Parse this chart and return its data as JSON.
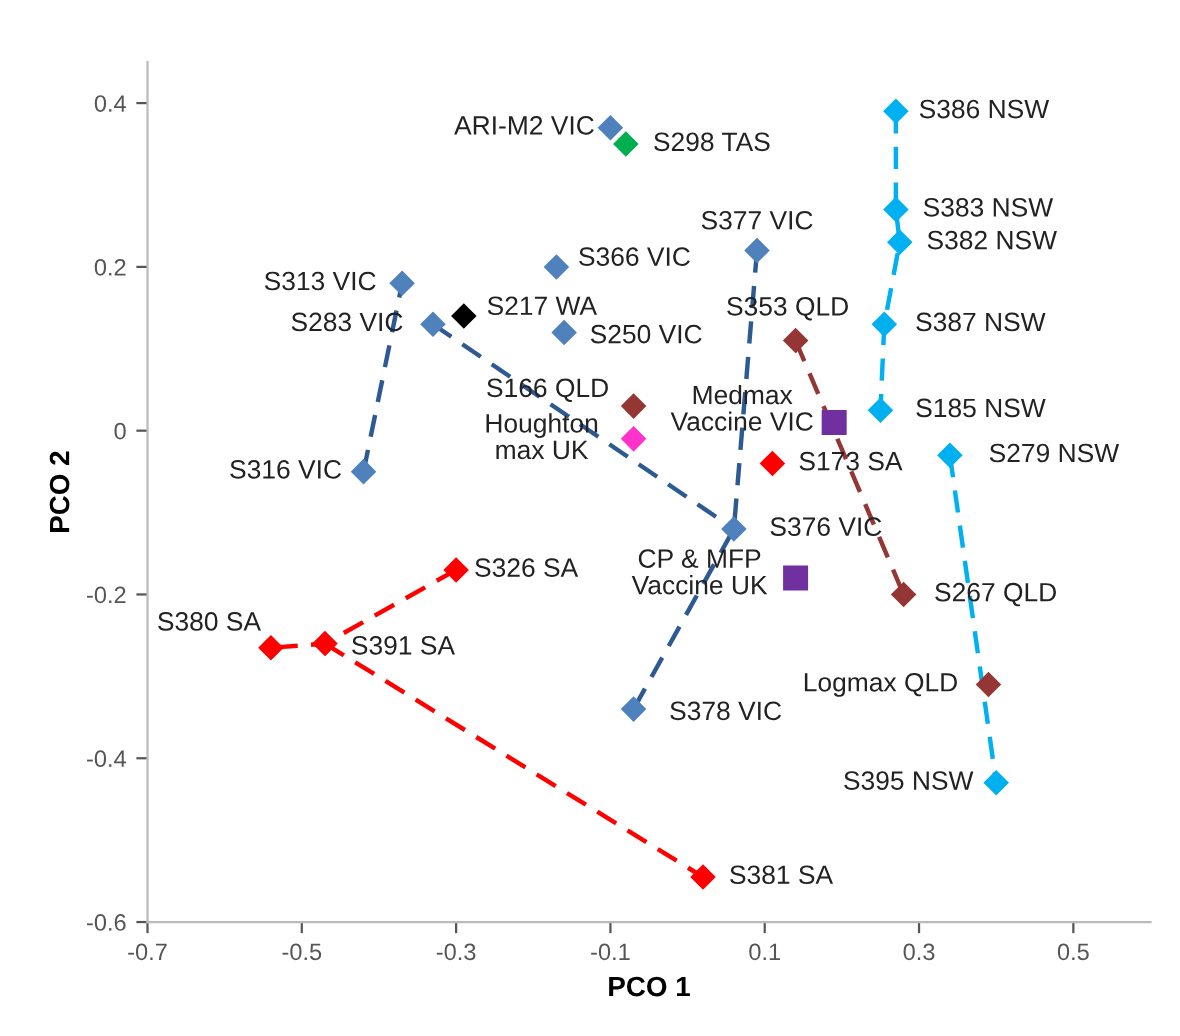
{
  "chart_data": {
    "type": "scatter",
    "xlabel": "PCO 1",
    "ylabel": "PCO 2",
    "xlim": [
      -0.7,
      0.6
    ],
    "xticks": [
      -0.7,
      -0.5,
      -0.3,
      -0.1,
      0.1,
      0.3,
      0.5
    ],
    "ylim": [
      -0.6,
      0.45
    ],
    "yticks": [
      -0.6,
      -0.4,
      -0.2,
      0,
      0.2,
      0.4
    ],
    "grid": false,
    "legend": false,
    "marker": "diamond",
    "series": [
      {
        "type": "line",
        "line_style": "dashed",
        "marker": "none",
        "color": "#2e5a94",
        "x": [
          -0.42,
          -0.37
        ],
        "values": [
          -0.05,
          0.18
        ]
      },
      {
        "type": "line",
        "line_style": "dashed",
        "marker": "none",
        "color": "#2e5a94",
        "x": [
          -0.33,
          0.06
        ],
        "values": [
          0.13,
          -0.12
        ]
      },
      {
        "type": "line",
        "line_style": "dashed",
        "marker": "none",
        "color": "#2e5a94",
        "x": [
          0.09,
          0.06,
          -0.07
        ],
        "values": [
          0.22,
          -0.12,
          -0.34
        ]
      },
      {
        "type": "line",
        "line_style": "dashed",
        "marker": "none",
        "color": "#ff0000",
        "x": [
          -0.3,
          -0.47,
          -0.54
        ],
        "values": [
          -0.17,
          -0.26,
          -0.265
        ]
      },
      {
        "type": "line",
        "line_style": "dashed",
        "marker": "none",
        "color": "#ff0000",
        "x": [
          -0.47,
          0.02
        ],
        "values": [
          -0.26,
          -0.545
        ]
      },
      {
        "type": "line",
        "line_style": "dashed",
        "marker": "none",
        "color": "#00b0f0",
        "x": [
          0.27,
          0.27,
          0.275,
          0.255,
          0.25
        ],
        "values": [
          0.39,
          0.27,
          0.23,
          0.13,
          0.025
        ]
      },
      {
        "type": "line",
        "line_style": "dashed",
        "marker": "none",
        "color": "#00b0f0",
        "x": [
          0.34,
          0.4
        ],
        "values": [
          -0.03,
          -0.43
        ]
      },
      {
        "type": "line",
        "line_style": "dashed",
        "marker": "none",
        "color": "#943634",
        "x": [
          0.14,
          0.28
        ],
        "values": [
          0.11,
          -0.2
        ]
      },
      {
        "color": "#4f81bd",
        "x": [
          -0.1,
          -0.37,
          -0.33,
          -0.17,
          -0.16,
          -0.42,
          0.09,
          0.06,
          -0.07
        ],
        "values": [
          0.37,
          0.18,
          0.13,
          0.2,
          0.12,
          -0.05,
          0.22,
          -0.12,
          -0.34
        ]
      },
      {
        "color": "#00b050",
        "x": [
          -0.08
        ],
        "values": [
          0.35
        ]
      },
      {
        "color": "#000000",
        "x": [
          -0.29
        ],
        "values": [
          0.14
        ]
      },
      {
        "color": "#943634",
        "x": [
          -0.07,
          0.14,
          0.28,
          0.39
        ],
        "values": [
          0.03,
          0.11,
          -0.2,
          -0.31
        ]
      },
      {
        "color": "#ff33cc",
        "x": [
          -0.07
        ],
        "values": [
          -0.01
        ]
      },
      {
        "marker": "square",
        "color": "#7030a0",
        "x": [
          0.19,
          0.14
        ],
        "values": [
          0.01,
          -0.18
        ]
      },
      {
        "color": "#00b0f0",
        "x": [
          0.27,
          0.27,
          0.275,
          0.255,
          0.25,
          0.34,
          0.4
        ],
        "values": [
          0.39,
          0.27,
          0.23,
          0.13,
          0.025,
          -0.03,
          -0.43
        ]
      },
      {
        "color": "#ff0000",
        "x": [
          -0.3,
          -0.47,
          -0.54,
          0.02,
          0.11
        ],
        "values": [
          -0.17,
          -0.26,
          -0.265,
          -0.545,
          -0.04
        ]
      }
    ],
    "annotations": [
      {
        "text": "ARI-M2 VIC",
        "x": -0.1,
        "y": 0.37
      },
      {
        "text": "S298 TAS",
        "x": -0.08,
        "y": 0.35
      },
      {
        "text": "S313 VIC",
        "x": -0.37,
        "y": 0.18
      },
      {
        "text": "S283 VIC",
        "x": -0.33,
        "y": 0.13
      },
      {
        "text": "S217 WA",
        "x": -0.29,
        "y": 0.14
      },
      {
        "text": "S366 VIC",
        "x": -0.17,
        "y": 0.2
      },
      {
        "text": "S250 VIC",
        "x": -0.16,
        "y": 0.12
      },
      {
        "text": "S166 QLD",
        "x": -0.07,
        "y": 0.03
      },
      {
        "text": "Houghton\nmax UK",
        "x": -0.07,
        "y": -0.01
      },
      {
        "text": "S316 VIC",
        "x": -0.42,
        "y": -0.05
      },
      {
        "text": "S377 VIC",
        "x": 0.09,
        "y": 0.22
      },
      {
        "text": "S353 QLD",
        "x": 0.14,
        "y": 0.11
      },
      {
        "text": "Medmax\nVaccine VIC",
        "x": 0.19,
        "y": 0.01
      },
      {
        "text": "S173 SA",
        "x": 0.11,
        "y": -0.04
      },
      {
        "text": "S386 NSW",
        "x": 0.27,
        "y": 0.39
      },
      {
        "text": "S383 NSW",
        "x": 0.27,
        "y": 0.27
      },
      {
        "text": "S382 NSW",
        "x": 0.275,
        "y": 0.23
      },
      {
        "text": "S387 NSW",
        "x": 0.255,
        "y": 0.13
      },
      {
        "text": "S185 NSW",
        "x": 0.25,
        "y": 0.025
      },
      {
        "text": "S279 NSW",
        "x": 0.34,
        "y": -0.03
      },
      {
        "text": "S376 VIC",
        "x": 0.06,
        "y": -0.12
      },
      {
        "text": "CP & MFP\nVaccine UK",
        "x": 0.14,
        "y": -0.18
      },
      {
        "text": "S267 QLD",
        "x": 0.28,
        "y": -0.2
      },
      {
        "text": "Logmax QLD",
        "x": 0.39,
        "y": -0.31
      },
      {
        "text": "S395 NSW",
        "x": 0.4,
        "y": -0.43
      },
      {
        "text": "S381 SA",
        "x": 0.02,
        "y": -0.545
      },
      {
        "text": "S378 VIC",
        "x": -0.07,
        "y": -0.34
      },
      {
        "text": "S326 SA",
        "x": -0.3,
        "y": -0.17
      },
      {
        "text": "S391 SA",
        "x": -0.47,
        "y": -0.26
      },
      {
        "text": "S380 SA",
        "x": -0.54,
        "y": -0.265
      }
    ]
  }
}
